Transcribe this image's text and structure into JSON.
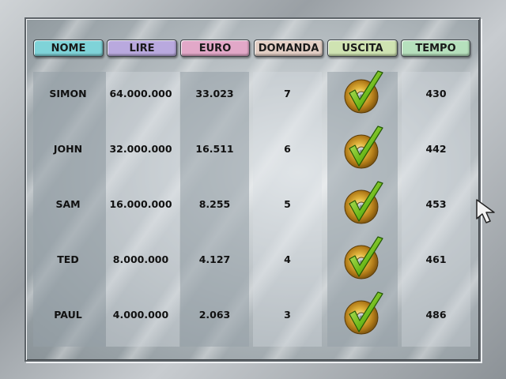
{
  "headers": [
    {
      "label": "NOME",
      "color": "#7fd3d8"
    },
    {
      "label": "LIRE",
      "color": "#b9a9de"
    },
    {
      "label": "EURO",
      "color": "#e2a8c8"
    },
    {
      "label": "DOMANDA",
      "color": "#e3cfc5"
    },
    {
      "label": "USCITA",
      "color": "#cfe3b2"
    },
    {
      "label": "TEMPO",
      "color": "#b6e0bd"
    }
  ],
  "rows": [
    {
      "nome": "SIMON",
      "lire": "64.000.000",
      "euro": "33.023",
      "domanda": "7",
      "uscita": "check-cd-icon",
      "tempo": "430"
    },
    {
      "nome": "JOHN",
      "lire": "32.000.000",
      "euro": "16.511",
      "domanda": "6",
      "uscita": "check-cd-icon",
      "tempo": "442"
    },
    {
      "nome": "SAM",
      "lire": "16.000.000",
      "euro": "8.255",
      "domanda": "5",
      "uscita": "check-cd-icon",
      "tempo": "453"
    },
    {
      "nome": "TED",
      "lire": "8.000.000",
      "euro": "4.127",
      "domanda": "4",
      "uscita": "check-cd-icon",
      "tempo": "461"
    },
    {
      "nome": "PAUL",
      "lire": "4.000.000",
      "euro": "2.063",
      "domanda": "3",
      "uscita": "check-cd-icon",
      "tempo": "486"
    }
  ],
  "cursor_icon": "arrow-cursor-icon"
}
